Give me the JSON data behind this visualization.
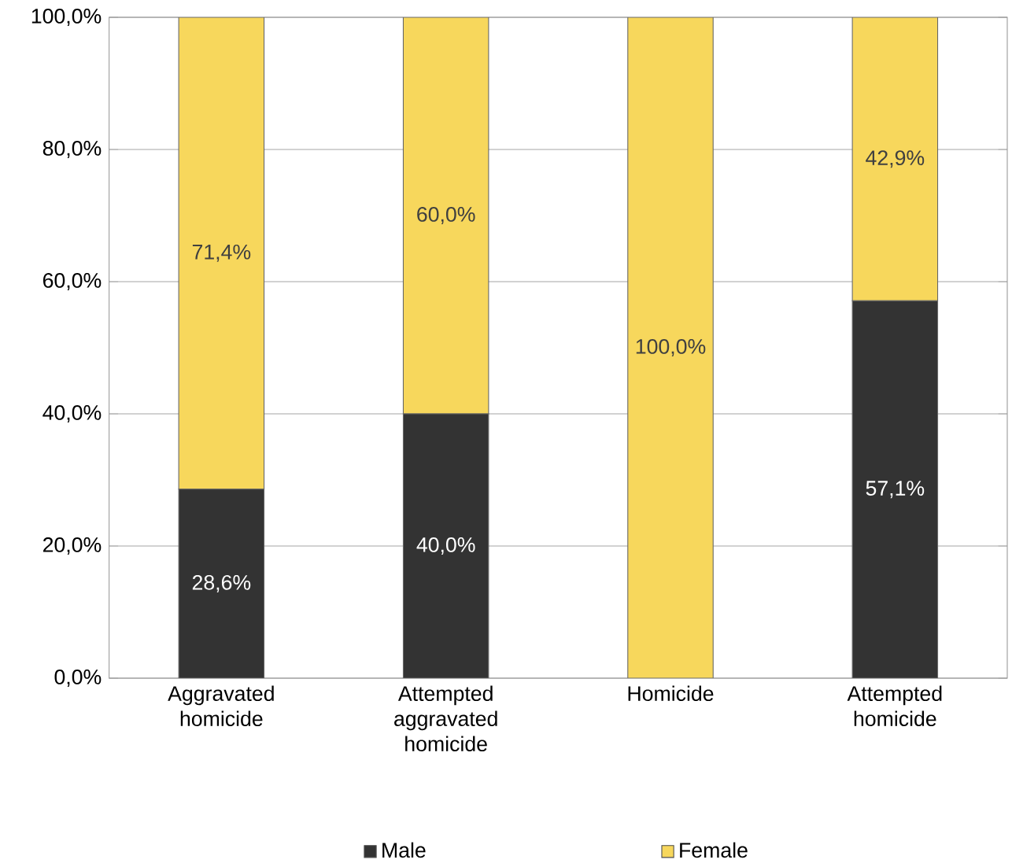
{
  "chart_data": {
    "type": "bar",
    "stacked": true,
    "categories": [
      "Aggravated homicide",
      "Attempted aggravated homicide",
      "Homicide",
      "Attempted homicide"
    ],
    "series": [
      {
        "name": "Male",
        "color": "#333333",
        "values": [
          28.6,
          40.0,
          0,
          57.1
        ],
        "value_labels": [
          "28,6%",
          "40,0%",
          null,
          "57,1%"
        ]
      },
      {
        "name": "Female",
        "color": "#f7d75c",
        "values": [
          71.4,
          60.0,
          100.0,
          42.9
        ],
        "value_labels": [
          "71,4%",
          "60,0%",
          "100,0%",
          "42,9%"
        ]
      }
    ],
    "ylim": [
      0,
      100
    ],
    "yticks": [
      {
        "value": 0,
        "label": "0,0%"
      },
      {
        "value": 20,
        "label": "20,0%"
      },
      {
        "value": 40,
        "label": "40,0%"
      },
      {
        "value": 60,
        "label": "60,0%"
      },
      {
        "value": 80,
        "label": "80,0%"
      },
      {
        "value": 100,
        "label": "100,0%"
      }
    ],
    "grid": "y",
    "legend": "bottom"
  }
}
